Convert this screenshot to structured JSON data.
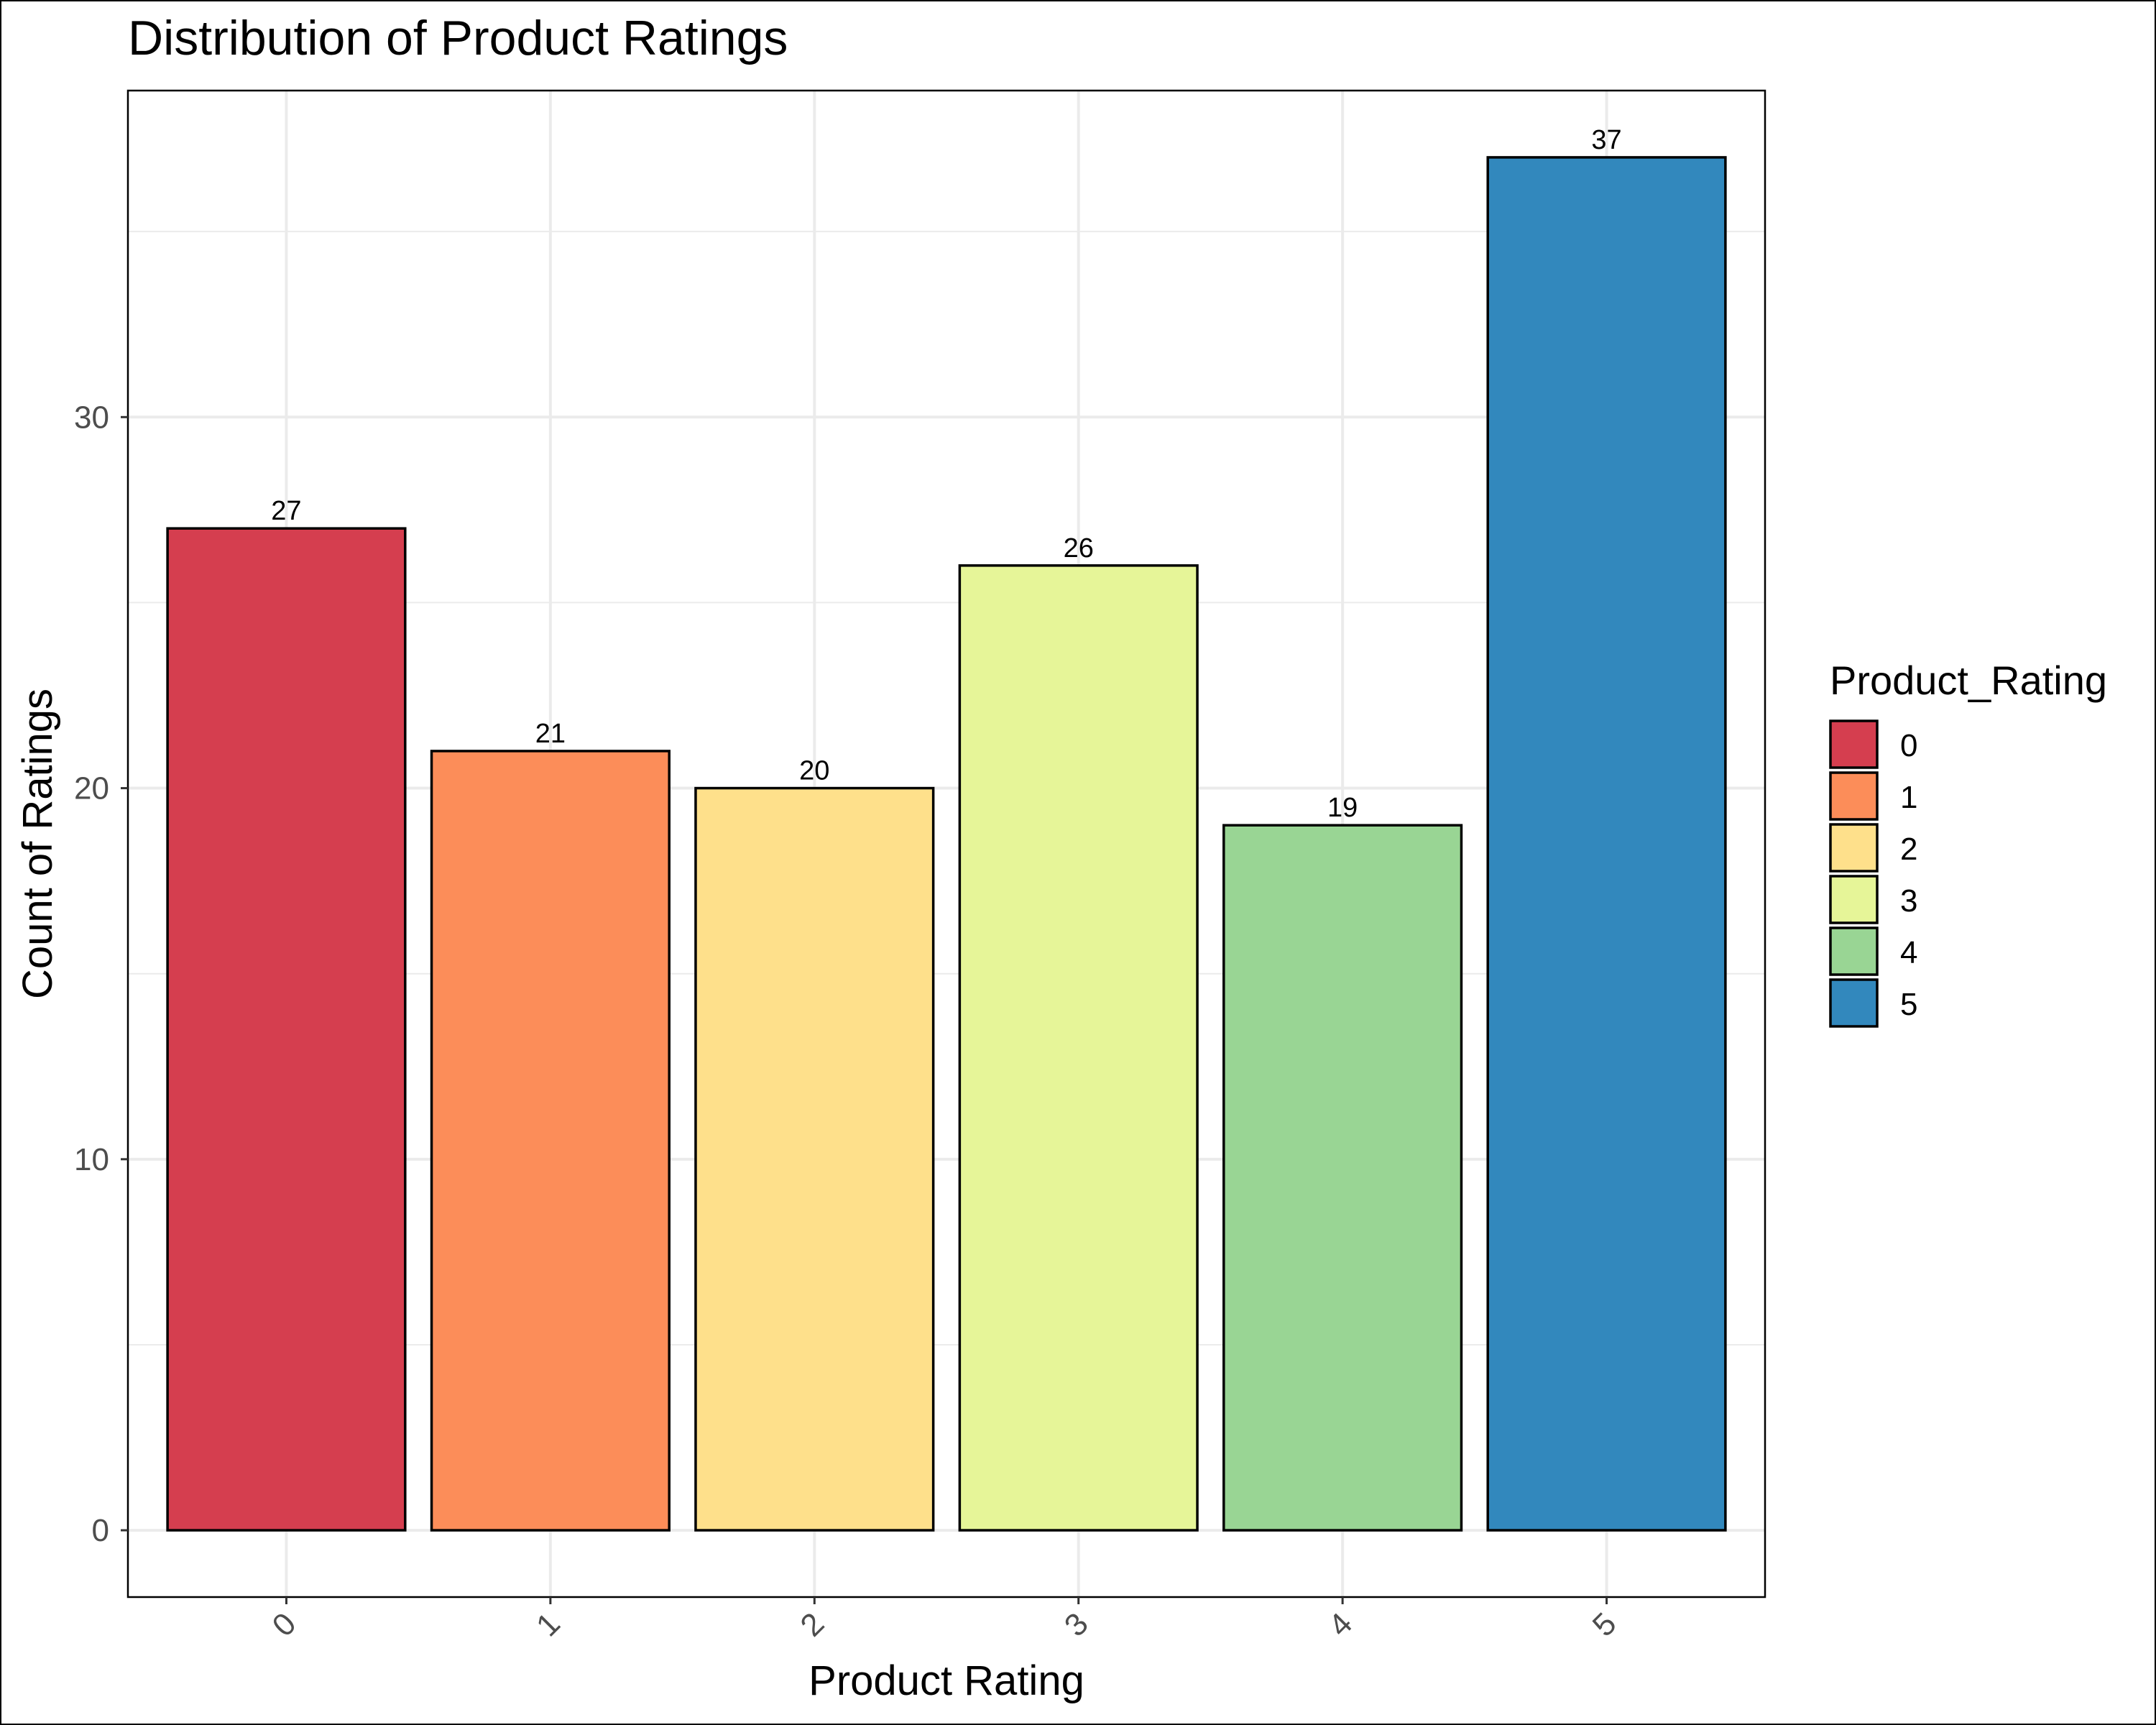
{
  "chart_data": {
    "type": "bar",
    "title": "Distribution of Product Ratings",
    "xlabel": "Product Rating",
    "ylabel": "Count of Ratings",
    "categories": [
      "0",
      "1",
      "2",
      "3",
      "4",
      "5"
    ],
    "values": [
      27,
      21,
      20,
      26,
      19,
      37
    ],
    "data_labels": [
      "27",
      "21",
      "20",
      "26",
      "19",
      "37"
    ],
    "colors": [
      "#d53e4f",
      "#fc8d59",
      "#fee08b",
      "#e6f598",
      "#99d594",
      "#3288bd"
    ],
    "ylim": [
      -1.8,
      38.8
    ],
    "yticks": [
      0,
      10,
      20,
      30
    ],
    "ytick_labels": [
      "0",
      "10",
      "20",
      "30"
    ],
    "grid": true,
    "legend": {
      "title": "Product_Rating",
      "placement": "right",
      "entries": [
        "0",
        "1",
        "2",
        "3",
        "4",
        "5"
      ]
    }
  }
}
